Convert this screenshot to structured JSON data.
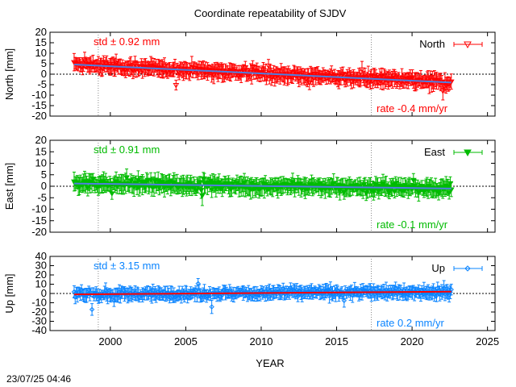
{
  "chart_data": {
    "type": "scatter",
    "title": "Coordinate repeatability of SJDV",
    "xlabel": "YEAR",
    "xlim": [
      1996,
      2025.5
    ],
    "xticks": [
      2000,
      2005,
      2010,
      2015,
      2020,
      2025
    ],
    "timestamp": "23/07/25 04:46",
    "vlines": [
      1999.2,
      2017.3
    ],
    "panels": [
      {
        "key": "north",
        "ylabel": "North [mm]",
        "legend": "North",
        "color": "#ff0000",
        "trend_color": "#4f7fe0",
        "std_label": "std ± 0.92 mm",
        "rate_label": "rate -0.4 mm/yr",
        "std": 0.92,
        "rate": -0.4,
        "ylim": [
          -20,
          20
        ],
        "yticks": [
          20,
          15,
          10,
          5,
          0,
          -5,
          -10,
          -15,
          -20
        ],
        "span": [
          1997.6,
          2022.6
        ],
        "start": 4.6,
        "end": -4.0
      },
      {
        "key": "east",
        "ylabel": "East [mm]",
        "legend": "East",
        "color": "#00bb00",
        "trend_color": "#4f7fe0",
        "std_label": "std ± 0.91 mm",
        "rate_label": "rate -0.1 mm/yr",
        "std": 0.91,
        "rate": -0.1,
        "ylim": [
          -20,
          20
        ],
        "yticks": [
          20,
          15,
          10,
          5,
          0,
          -5,
          -10,
          -15,
          -20
        ],
        "span": [
          1997.6,
          2022.6
        ],
        "start": 1.2,
        "end": -1.0
      },
      {
        "key": "up",
        "ylabel": "Up [mm]",
        "legend": "Up",
        "color": "#0a84ff",
        "trend_color": "#ff0000",
        "std_label": "std ± 3.15 mm",
        "rate_label": "rate  0.2 mm/yr",
        "std": 3.15,
        "rate": 0.2,
        "ylim": [
          -40,
          40
        ],
        "yticks": [
          40,
          30,
          20,
          10,
          0,
          -10,
          -20,
          -30,
          -40
        ],
        "span": [
          1997.6,
          2022.6
        ],
        "start": -1.0,
        "end": 2.0
      }
    ]
  }
}
